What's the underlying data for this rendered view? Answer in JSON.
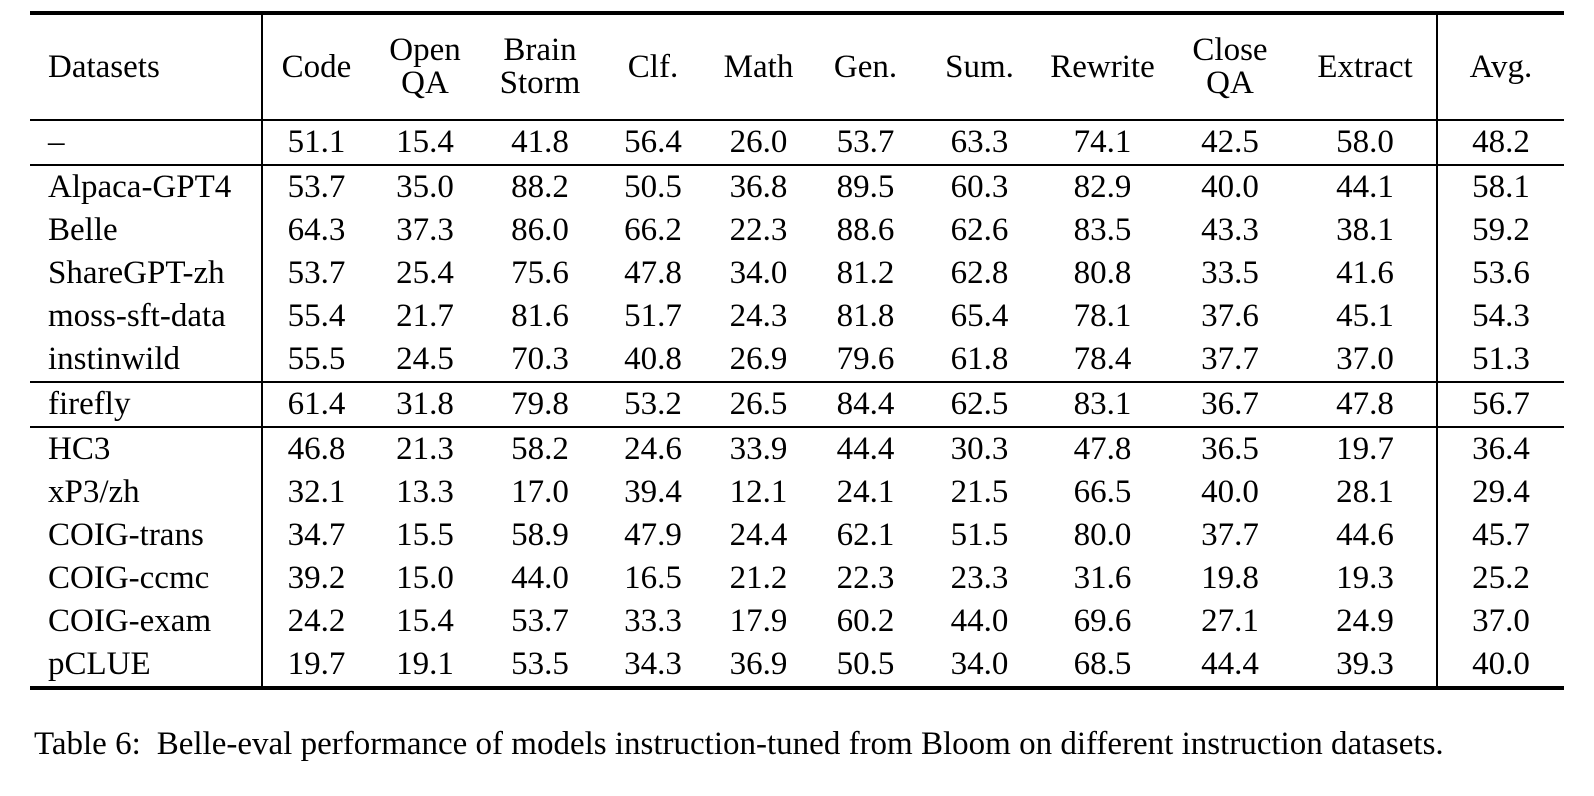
{
  "table": {
    "columns": [
      "Datasets",
      "Code",
      "Open\nQA",
      "Brain\nStorm",
      "Clf.",
      "Math",
      "Gen.",
      "Sum.",
      "Rewrite",
      "Close\nQA",
      "Extract",
      "Avg."
    ],
    "groups": [
      {
        "rows": [
          {
            "dataset": "–",
            "values": [
              "51.1",
              "15.4",
              "41.8",
              "56.4",
              "26.0",
              "53.7",
              "63.3",
              "74.1",
              "42.5",
              "58.0",
              "48.2"
            ]
          }
        ]
      },
      {
        "rows": [
          {
            "dataset": "Alpaca-GPT4",
            "values": [
              "53.7",
              "35.0",
              "88.2",
              "50.5",
              "36.8",
              "89.5",
              "60.3",
              "82.9",
              "40.0",
              "44.1",
              "58.1"
            ]
          },
          {
            "dataset": "Belle",
            "values": [
              "64.3",
              "37.3",
              "86.0",
              "66.2",
              "22.3",
              "88.6",
              "62.6",
              "83.5",
              "43.3",
              "38.1",
              "59.2"
            ]
          },
          {
            "dataset": "ShareGPT-zh",
            "values": [
              "53.7",
              "25.4",
              "75.6",
              "47.8",
              "34.0",
              "81.2",
              "62.8",
              "80.8",
              "33.5",
              "41.6",
              "53.6"
            ]
          },
          {
            "dataset": "moss-sft-data",
            "values": [
              "55.4",
              "21.7",
              "81.6",
              "51.7",
              "24.3",
              "81.8",
              "65.4",
              "78.1",
              "37.6",
              "45.1",
              "54.3"
            ]
          },
          {
            "dataset": "instinwild",
            "values": [
              "55.5",
              "24.5",
              "70.3",
              "40.8",
              "26.9",
              "79.6",
              "61.8",
              "78.4",
              "37.7",
              "37.0",
              "51.3"
            ]
          }
        ]
      },
      {
        "rows": [
          {
            "dataset": "firefly",
            "values": [
              "61.4",
              "31.8",
              "79.8",
              "53.2",
              "26.5",
              "84.4",
              "62.5",
              "83.1",
              "36.7",
              "47.8",
              "56.7"
            ]
          }
        ]
      },
      {
        "rows": [
          {
            "dataset": "HC3",
            "values": [
              "46.8",
              "21.3",
              "58.2",
              "24.6",
              "33.9",
              "44.4",
              "30.3",
              "47.8",
              "36.5",
              "19.7",
              "36.4"
            ]
          },
          {
            "dataset": "xP3/zh",
            "values": [
              "32.1",
              "13.3",
              "17.0",
              "39.4",
              "12.1",
              "24.1",
              "21.5",
              "66.5",
              "40.0",
              "28.1",
              "29.4"
            ]
          },
          {
            "dataset": "COIG-trans",
            "values": [
              "34.7",
              "15.5",
              "58.9",
              "47.9",
              "24.4",
              "62.1",
              "51.5",
              "80.0",
              "37.7",
              "44.6",
              "45.7"
            ]
          },
          {
            "dataset": "COIG-ccmc",
            "values": [
              "39.2",
              "15.0",
              "44.0",
              "16.5",
              "21.2",
              "22.3",
              "23.3",
              "31.6",
              "19.8",
              "19.3",
              "25.2"
            ]
          },
          {
            "dataset": "COIG-exam",
            "values": [
              "24.2",
              "15.4",
              "53.7",
              "33.3",
              "17.9",
              "60.2",
              "44.0",
              "69.6",
              "27.1",
              "24.9",
              "37.0"
            ]
          },
          {
            "dataset": "pCLUE",
            "values": [
              "19.7",
              "19.1",
              "53.5",
              "34.3",
              "36.9",
              "50.5",
              "34.0",
              "68.5",
              "44.4",
              "39.3",
              "40.0"
            ]
          }
        ]
      }
    ]
  },
  "caption": {
    "label": "Table 6:",
    "text": "Belle-eval performance of models instruction-tuned from Bloom on different instruction datasets."
  }
}
